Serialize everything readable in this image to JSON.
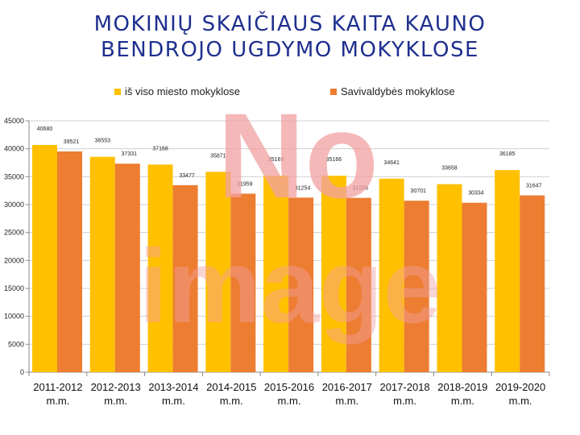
{
  "title_line1": "MOKINIŲ SKAIČIAUS KAITA KAUNO",
  "title_line2": "BENDROJO UGDYMO MOKYKLOSE",
  "watermark": {
    "text_top": "No",
    "text_bottom": "image",
    "color": "#f2a0a0"
  },
  "colors": {
    "series1": "#ffc000",
    "series2": "#ed7d31",
    "axis": "#888888",
    "grid": "#d0d0d0"
  },
  "chart_data": {
    "type": "bar",
    "title": "MOKINIŲ SKAIČIAUS KAITA KAUNO BENDROJO UGDYMO MOKYKLOSE",
    "categories": [
      [
        "2011-2012",
        "m.m."
      ],
      [
        "2012-2013",
        "m.m."
      ],
      [
        "2013-2014",
        "m.m."
      ],
      [
        "2014-2015",
        "m.m."
      ],
      [
        "2015-2016",
        "m.m."
      ],
      [
        "2016-2017",
        "m.m."
      ],
      [
        "2017-2018",
        "m.m."
      ],
      [
        "2018-2019",
        "m.m."
      ],
      [
        "2019-2020",
        "m.m."
      ]
    ],
    "series": [
      {
        "name": "iš viso miesto mokyklose",
        "values": [
          40680,
          38553,
          37168,
          35871,
          35169,
          35166,
          34641,
          33658,
          36185
        ]
      },
      {
        "name": "Savivaldybės mokyklose",
        "values": [
          39521,
          37331,
          33477,
          31959,
          31254,
          31206,
          30701,
          30334,
          31647
        ]
      }
    ],
    "ylim": [
      0,
      45000
    ],
    "yticks": [
      0,
      5000,
      10000,
      15000,
      20000,
      25000,
      30000,
      35000,
      40000,
      45000
    ],
    "grid": true,
    "legend_position": "top"
  }
}
